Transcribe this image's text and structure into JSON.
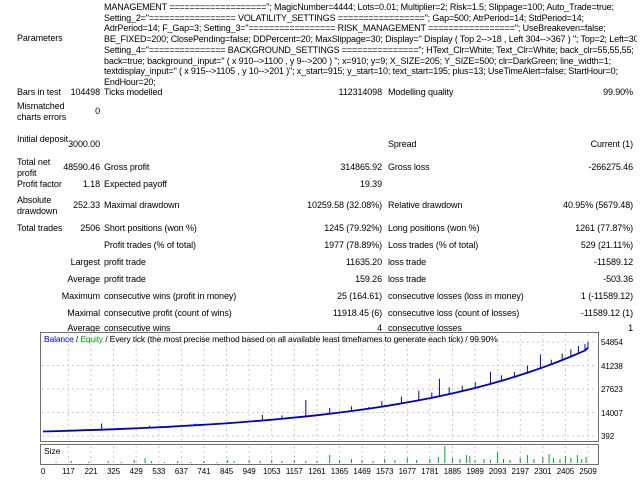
{
  "parameters": {
    "label": "Parameters",
    "lines": [
      "MANAGEMENT ===================\"; MagicNumber=4444; Lots=0.01; Multiplier=2; Risk=1.5; Slippage=100; Auto_Trade=true;",
      "Setting_2=\"================= VOLATILITY_SETTINGS =================\"; Gap=500; AtrPeriod=14; StdPeriod=14;",
      "AdrPeriod=14; F_Gap=3; Setting_3=\"================= RISK_MANAGEMENT =================\"; UseBreakeven=false;",
      "BE_FIXED=200; ClosePending=false; DDPercent=20; MaxSlippage=30; Display=\" Display ( Top 2-->18 , Left 304-->367 ) \"; Top=2; Left=304;",
      "Setting_4=\"=============== BACKGROUND_SETTINGS ===============\"; HText_Clr=White; Text_Clr=White; back_clr=55,55,55;",
      "back=true; background_input=\" ( x 910-->1100 , y 9-->200 ) \"; x=910; y=9; X_SIZE=205; Y_SIZE=500; clr=DarkGreen; line_width=1;",
      "textdisplay_input=\" ( x 915-->1105 , y 10-->201 )\"; x_start=915; y_start=10; text_start=195; plus=13; UseTimeAlert=false; StartHour=0;",
      "EndHour=20;"
    ]
  },
  "report": {
    "rows": [
      {
        "c1": "Bars in test",
        "c2": "104498",
        "c3": "Ticks modelled",
        "c4": "112314098",
        "c5": "Modelling quality",
        "c6": "99.90%"
      },
      {
        "c1": "Mismatched charts errors",
        "c2": "0",
        "c3": "",
        "c4": "",
        "c5": "",
        "c6": ""
      },
      {
        "c1": "Initial deposit",
        "c2": "3000.00",
        "c3": "",
        "c4": "",
        "c5": "Spread",
        "c6": "Current (1)"
      },
      {
        "c1": "Total net profit",
        "c2": "48590.46",
        "c3": "Gross profit",
        "c4": "314865.92",
        "c5": "Gross loss",
        "c6": "-266275.46"
      },
      {
        "c1": "Profit factor",
        "c2": "1.18",
        "c3": "Expected payoff",
        "c4": "19.39",
        "c5": "",
        "c6": ""
      },
      {
        "c1": "Absolute drawdown",
        "c2": "252.33",
        "c3": "Maximal drawdown",
        "c4": "10259.58 (32.08%)",
        "c5": "Relative drawdown",
        "c6": "40.95% (5679.48)"
      },
      {
        "c1": "Total trades",
        "c2": "2506",
        "c3": "Short positions (won %)",
        "c4": "1245 (79.92%)",
        "c5": "Long positions (won %)",
        "c6": "1261 (77.87%)"
      },
      {
        "c1": "",
        "c2": "",
        "c3": "Profit trades (% of total)",
        "c4": "1977 (78.89%)",
        "c5": "Loss trades (% of total)",
        "c6": "529 (21.11%)"
      },
      {
        "c1": "",
        "c2": "Largest",
        "c3": "profit trade",
        "c4": "11635.20",
        "c5": "loss trade",
        "c6": "-11589.12"
      },
      {
        "c1": "",
        "c2": "Average",
        "c3": "profit trade",
        "c4": "159.26",
        "c5": "loss trade",
        "c6": "-503.36"
      },
      {
        "c1": "",
        "c2": "Maximum",
        "c3": "consecutive wins (profit in money)",
        "c4": "25 (164.61)",
        "c5": "consecutive losses (loss in money)",
        "c6": "1 (-11589.12)"
      },
      {
        "c1": "",
        "c2": "Maximal",
        "c3": "consecutive profit (count of wins)",
        "c4": "11918.45 (6)",
        "c5": "consecutive loss (count of losses)",
        "c6": "-11589.12 (1)"
      },
      {
        "c1": "",
        "c2": "Average",
        "c3": "consecutive wins",
        "c4": "4",
        "c5": "consecutive losses",
        "c6": "1"
      }
    ]
  },
  "chart_data": {
    "type": "line",
    "legend": {
      "balance": "Balance",
      "sep1": " / ",
      "equity": "Equity",
      "method": " / Every tick (the most precise method based on all available least timeframes to generate each tick) / 99.90%"
    },
    "size_label": "Size",
    "x_ticks": [
      0,
      117,
      221,
      325,
      429,
      533,
      637,
      741,
      845,
      949,
      1053,
      1157,
      1261,
      1365,
      1469,
      1573,
      1677,
      1781,
      1885,
      1989,
      2093,
      2197,
      2301,
      2405,
      2509
    ],
    "y_ticks": [
      54854,
      41238,
      27623,
      14007,
      392
    ],
    "xlim": [
      0,
      2566
    ],
    "ylim": [
      392,
      61000
    ],
    "grid": true,
    "legend_position": "top-left",
    "colors": {
      "balance_line": "#0000c8",
      "balance_label": "#0000ff",
      "equity_label": "#00a000",
      "size_bars": "#00a32e",
      "grid": "#c9c9c9"
    },
    "series": [
      {
        "name": "Balance",
        "points": [
          [
            0,
            3000
          ],
          [
            64,
            3225
          ],
          [
            128,
            3465
          ],
          [
            192,
            3725
          ],
          [
            256,
            4005
          ],
          [
            320,
            4300
          ],
          [
            384,
            4625
          ],
          [
            448,
            4970
          ],
          [
            512,
            5340
          ],
          [
            576,
            5740
          ],
          [
            640,
            6170
          ],
          [
            704,
            6630
          ],
          [
            768,
            7125
          ],
          [
            832,
            7660
          ],
          [
            896,
            8230
          ],
          [
            960,
            8845
          ],
          [
            1024,
            9510
          ],
          [
            1088,
            10220
          ],
          [
            1152,
            10980
          ],
          [
            1216,
            11800
          ],
          [
            1280,
            12690
          ],
          [
            1344,
            13640
          ],
          [
            1408,
            14660
          ],
          [
            1472,
            15750
          ],
          [
            1536,
            16930
          ],
          [
            1600,
            18200
          ],
          [
            1664,
            19560
          ],
          [
            1728,
            21020
          ],
          [
            1792,
            22600
          ],
          [
            1856,
            24290
          ],
          [
            1920,
            26100
          ],
          [
            1984,
            28060
          ],
          [
            2048,
            30160
          ],
          [
            2112,
            32410
          ],
          [
            2176,
            34840
          ],
          [
            2240,
            37450
          ],
          [
            2304,
            40250
          ],
          [
            2368,
            43260
          ],
          [
            2432,
            46500
          ],
          [
            2496,
            49980
          ],
          [
            2509,
            51590
          ]
        ]
      },
      {
        "name": "Equity peaks",
        "points": [
          [
            270,
            7600
          ],
          [
            490,
            6300
          ],
          [
            700,
            7500
          ],
          [
            1010,
            12600
          ],
          [
            1100,
            12300
          ],
          [
            1210,
            21200
          ],
          [
            1320,
            16600
          ],
          [
            1420,
            17600
          ],
          [
            1500,
            17200
          ],
          [
            1560,
            20600
          ],
          [
            1650,
            23200
          ],
          [
            1730,
            26600
          ],
          [
            1790,
            25600
          ],
          [
            1825,
            33600
          ],
          [
            1870,
            28600
          ],
          [
            1930,
            29600
          ],
          [
            1990,
            31600
          ],
          [
            2060,
            37600
          ],
          [
            2110,
            35600
          ],
          [
            2170,
            37600
          ],
          [
            2230,
            41200
          ],
          [
            2290,
            47600
          ],
          [
            2340,
            44600
          ],
          [
            2390,
            48200
          ],
          [
            2430,
            50600
          ],
          [
            2465,
            52600
          ],
          [
            2495,
            53600
          ],
          [
            2509,
            54854
          ]
        ]
      }
    ],
    "size_bars": [
      [
        60,
        1
      ],
      [
        130,
        2
      ],
      [
        210,
        1
      ],
      [
        300,
        2
      ],
      [
        360,
        1
      ],
      [
        420,
        3
      ],
      [
        470,
        5
      ],
      [
        500,
        2
      ],
      [
        560,
        1
      ],
      [
        620,
        2
      ],
      [
        680,
        1
      ],
      [
        740,
        2
      ],
      [
        800,
        1
      ],
      [
        850,
        3
      ],
      [
        880,
        2
      ],
      [
        949,
        3
      ],
      [
        1000,
        2
      ],
      [
        1053,
        3
      ],
      [
        1100,
        2
      ],
      [
        1157,
        3
      ],
      [
        1210,
        2
      ],
      [
        1261,
        2
      ],
      [
        1320,
        8
      ],
      [
        1365,
        3
      ],
      [
        1420,
        4
      ],
      [
        1469,
        3
      ],
      [
        1520,
        2
      ],
      [
        1573,
        4
      ],
      [
        1620,
        3
      ],
      [
        1677,
        5
      ],
      [
        1720,
        3
      ],
      [
        1781,
        4
      ],
      [
        1820,
        6
      ],
      [
        1850,
        17
      ],
      [
        1885,
        5
      ],
      [
        1920,
        4
      ],
      [
        1950,
        8
      ],
      [
        1965,
        7
      ],
      [
        1989,
        3
      ],
      [
        2030,
        4
      ],
      [
        2060,
        3
      ],
      [
        2093,
        11
      ],
      [
        2120,
        4
      ],
      [
        2150,
        3
      ],
      [
        2197,
        5
      ],
      [
        2230,
        8
      ],
      [
        2260,
        4
      ],
      [
        2301,
        6
      ],
      [
        2330,
        9
      ],
      [
        2350,
        5
      ],
      [
        2380,
        4
      ],
      [
        2405,
        7
      ],
      [
        2430,
        5
      ],
      [
        2460,
        8
      ],
      [
        2480,
        4
      ],
      [
        2500,
        6
      ]
    ]
  }
}
